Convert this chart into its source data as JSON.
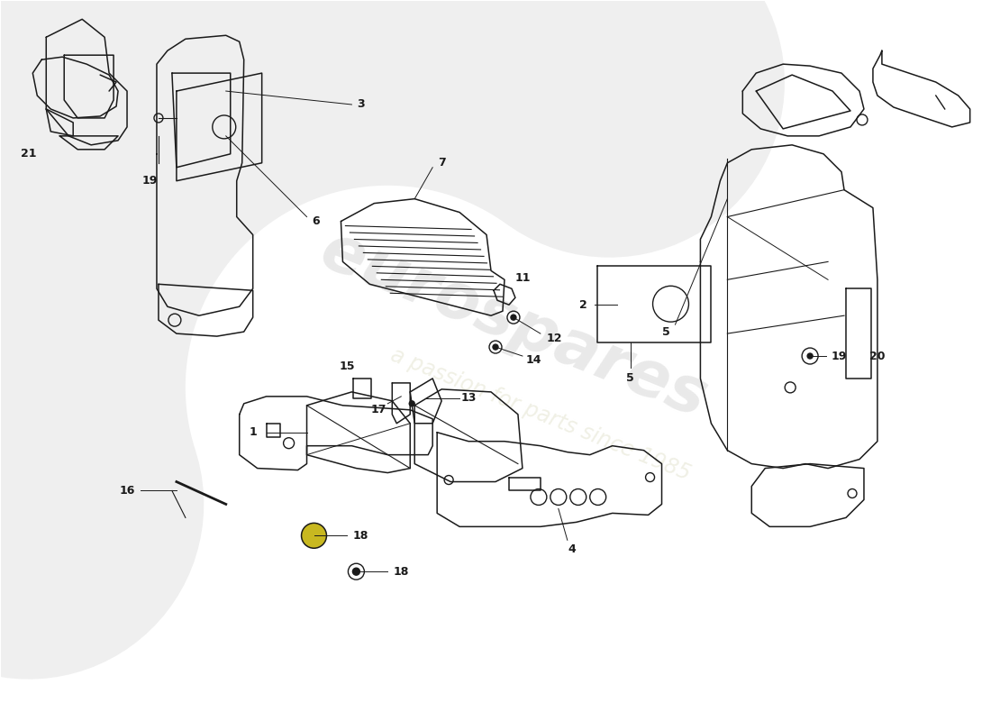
{
  "bg_color": "#ffffff",
  "line_color": "#1a1a1a",
  "lw": 1.1,
  "wm_text1": "eurospares",
  "wm_text2": "a passion for parts since 1985",
  "wm_color1": "#d8d8d8",
  "wm_color2": "#e8e8d8",
  "wm_alpha1": 0.55,
  "wm_alpha2": 0.65,
  "wm_rotation": -22,
  "wm_fontsize1": 52,
  "wm_fontsize2": 17
}
